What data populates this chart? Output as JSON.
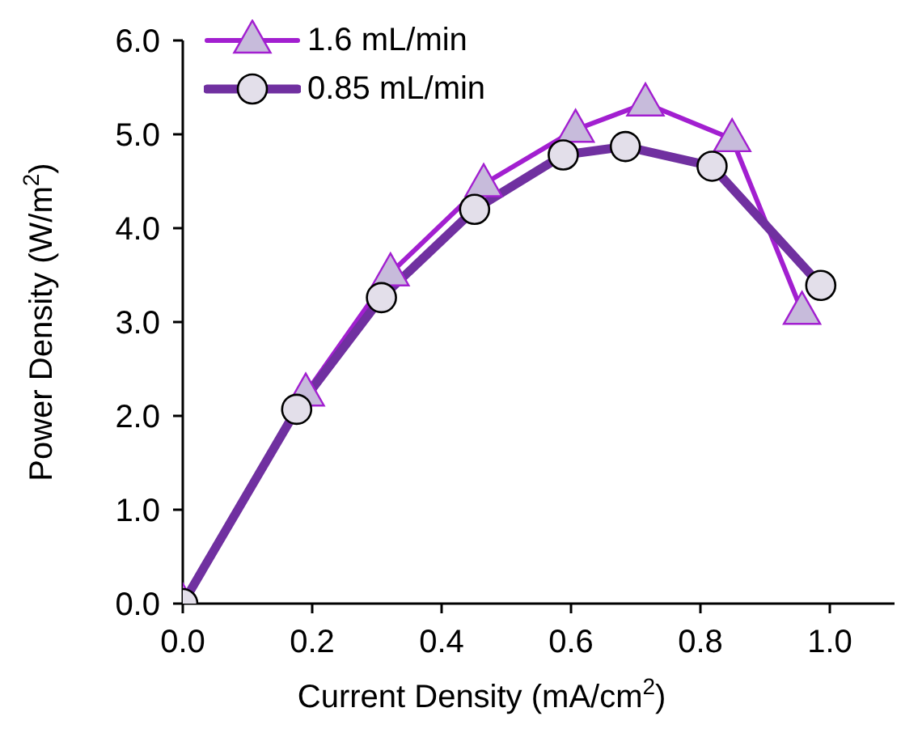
{
  "chart_data": {
    "type": "line",
    "xlabel": "Current Density (mA/cm$^{2}$)",
    "ylabel": "Power Density (W/m$^{2}$)",
    "xlim": [
      0,
      1.1
    ],
    "ylim": [
      0,
      6
    ],
    "xticks": [
      {
        "value": 0,
        "label": "0.0"
      },
      {
        "value": 0.2,
        "label": "0.2"
      },
      {
        "value": 0.4,
        "label": "0.4"
      },
      {
        "value": 0.6,
        "label": "0.6"
      },
      {
        "value": 0.8,
        "label": "0.8"
      },
      {
        "value": 1.0,
        "label": "1.0"
      }
    ],
    "yticks": [
      {
        "value": 0,
        "label": "0.0"
      },
      {
        "value": 1,
        "label": "1.0"
      },
      {
        "value": 2,
        "label": "2.0"
      },
      {
        "value": 3,
        "label": "3.0"
      },
      {
        "value": 4,
        "label": "4.0"
      },
      {
        "value": 5,
        "label": "5.0"
      },
      {
        "value": 6,
        "label": "6.0"
      }
    ],
    "grid": false,
    "legend": "top left",
    "series": [
      {
        "name": "1.6 mL/min",
        "color": "#a21fd0",
        "marker": "triangle",
        "x": [
          0,
          0.19,
          0.321,
          0.465,
          0.607,
          0.715,
          0.849,
          0.957
        ],
        "values": [
          0,
          2.24,
          3.52,
          4.47,
          5.05,
          5.33,
          4.95,
          3.11
        ]
      },
      {
        "name": "0.85 mL/min",
        "color": "#7030a0",
        "marker": "circle",
        "x": [
          0,
          0.176,
          0.307,
          0.451,
          0.588,
          0.684,
          0.818,
          0.986
        ],
        "values": [
          0,
          2.07,
          3.26,
          4.2,
          4.78,
          4.87,
          4.66,
          3.39
        ]
      }
    ]
  }
}
